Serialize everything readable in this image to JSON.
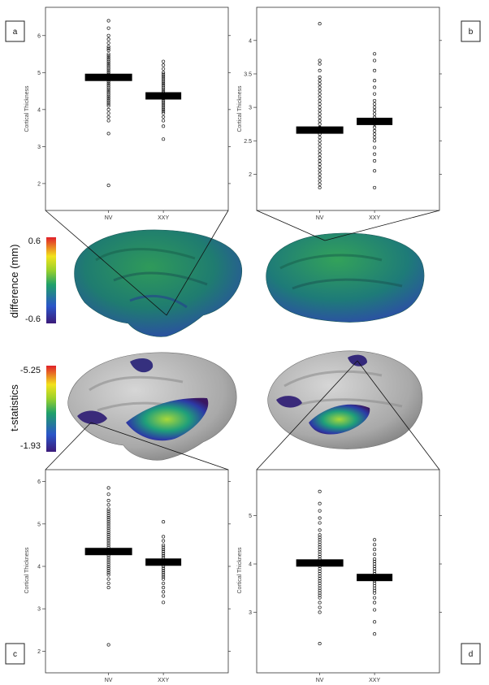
{
  "figure": {
    "colorbar_difference": {
      "label": "difference (mm)",
      "max_label": "0.6",
      "min_label": "-0.6"
    },
    "colorbar_tstat": {
      "label": "t-statistics",
      "max_label": "-5.25",
      "min_label": "-1.93"
    }
  },
  "chart_data": [
    {
      "type": "scatter",
      "panel": "a",
      "ylabel": "Cortical Thickness",
      "categories": [
        "NV",
        "XXY"
      ],
      "ylim": [
        1.8,
        6.5
      ],
      "yticks": [
        2,
        3,
        4,
        5,
        6
      ],
      "means": [
        4.87,
        4.37
      ],
      "series": [
        {
          "values": [
            6.4,
            6.2,
            6.0,
            5.9,
            5.8,
            5.7,
            5.65,
            5.6,
            5.5,
            5.45,
            5.4,
            5.35,
            5.3,
            5.25,
            5.2,
            5.15,
            5.1,
            5.05,
            5.0,
            4.95,
            4.9,
            4.85,
            4.8,
            4.75,
            4.7,
            4.65,
            4.6,
            4.55,
            4.5,
            4.45,
            4.4,
            4.35,
            4.3,
            4.25,
            4.2,
            4.15,
            4.1,
            4.0,
            3.9,
            3.8,
            3.7,
            3.35,
            1.95
          ]
        },
        {
          "values": [
            5.3,
            5.2,
            5.1,
            5.0,
            4.95,
            4.9,
            4.85,
            4.8,
            4.75,
            4.7,
            4.65,
            4.6,
            4.55,
            4.5,
            4.45,
            4.4,
            4.35,
            4.3,
            4.25,
            4.2,
            4.15,
            4.1,
            4.05,
            4.0,
            3.95,
            3.9,
            3.8,
            3.7,
            3.55,
            3.2
          ]
        }
      ]
    },
    {
      "type": "scatter",
      "panel": "b",
      "ylabel": "Cortical Thickness",
      "categories": [
        "NV",
        "XXY"
      ],
      "ylim": [
        1.75,
        4.35
      ],
      "yticks": [
        2.0,
        2.5,
        3.0,
        3.5,
        4.0
      ],
      "means": [
        2.66,
        2.79
      ],
      "series": [
        {
          "values": [
            4.25,
            3.7,
            3.65,
            3.55,
            3.45,
            3.4,
            3.35,
            3.3,
            3.25,
            3.2,
            3.15,
            3.1,
            3.05,
            3.0,
            2.95,
            2.9,
            2.85,
            2.8,
            2.75,
            2.7,
            2.65,
            2.6,
            2.55,
            2.5,
            2.45,
            2.4,
            2.35,
            2.3,
            2.25,
            2.2,
            2.15,
            2.1,
            2.05,
            2.0,
            1.95,
            1.9,
            1.85,
            1.8
          ]
        },
        {
          "values": [
            3.8,
            3.7,
            3.55,
            3.4,
            3.3,
            3.2,
            3.1,
            3.05,
            3.0,
            2.95,
            2.9,
            2.85,
            2.8,
            2.75,
            2.7,
            2.65,
            2.6,
            2.55,
            2.5,
            2.4,
            2.3,
            2.2,
            2.05,
            1.8
          ]
        }
      ]
    },
    {
      "type": "scatter",
      "panel": "c",
      "ylabel": "Cortical Thickness",
      "categories": [
        "NV",
        "XXY"
      ],
      "ylim": [
        1.95,
        6.05
      ],
      "yticks": [
        2,
        3,
        4,
        5,
        6
      ],
      "means": [
        4.35,
        4.1
      ],
      "series": [
        {
          "values": [
            5.85,
            5.7,
            5.55,
            5.45,
            5.35,
            5.3,
            5.25,
            5.2,
            5.15,
            5.1,
            5.05,
            5.0,
            4.95,
            4.9,
            4.85,
            4.8,
            4.75,
            4.7,
            4.65,
            4.6,
            4.55,
            4.5,
            4.45,
            4.4,
            4.3,
            4.25,
            4.2,
            4.15,
            4.1,
            4.05,
            4.0,
            3.95,
            3.9,
            3.85,
            3.8,
            3.7,
            3.6,
            3.5,
            2.15
          ]
        },
        {
          "values": [
            5.05,
            4.7,
            4.6,
            4.5,
            4.45,
            4.4,
            4.35,
            4.3,
            4.25,
            4.2,
            4.15,
            4.05,
            4.0,
            3.95,
            3.9,
            3.85,
            3.8,
            3.75,
            3.7,
            3.6,
            3.5,
            3.4,
            3.3,
            3.15
          ]
        }
      ]
    },
    {
      "type": "scatter",
      "panel": "d",
      "ylabel": "Cortical Thickness",
      "categories": [
        "NV",
        "XXY"
      ],
      "ylim": [
        2.15,
        5.75
      ],
      "yticks": [
        3,
        4,
        5
      ],
      "means": [
        4.02,
        3.72
      ],
      "series": [
        {
          "values": [
            5.5,
            5.25,
            5.1,
            4.95,
            4.85,
            4.7,
            4.6,
            4.55,
            4.5,
            4.45,
            4.4,
            4.35,
            4.3,
            4.25,
            4.2,
            4.15,
            4.1,
            4.05,
            3.95,
            3.9,
            3.85,
            3.8,
            3.75,
            3.7,
            3.65,
            3.6,
            3.55,
            3.5,
            3.45,
            3.4,
            3.35,
            3.3,
            3.2,
            3.1,
            3.0,
            2.35
          ]
        },
        {
          "values": [
            4.5,
            4.4,
            4.3,
            4.2,
            4.1,
            4.05,
            4.0,
            3.95,
            3.9,
            3.85,
            3.8,
            3.75,
            3.7,
            3.65,
            3.6,
            3.55,
            3.5,
            3.45,
            3.4,
            3.3,
            3.2,
            3.05,
            2.8,
            2.55
          ]
        }
      ]
    }
  ]
}
